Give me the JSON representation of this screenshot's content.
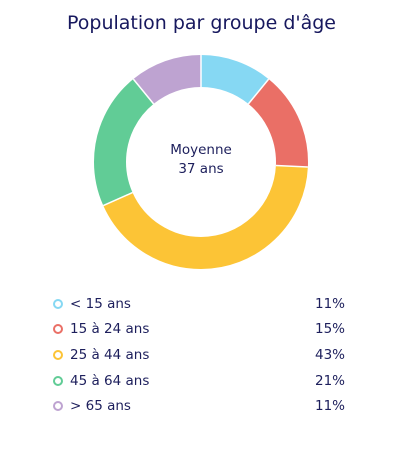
{
  "chart_data": {
    "type": "pie",
    "title": "Population par groupe d'âge",
    "center_label": {
      "line1": "Moyenne",
      "line2": "37 ans"
    },
    "categories": [
      "< 15 ans",
      "15 à 24 ans",
      "25 à 44 ans",
      "45 à 64 ans",
      "> 65 ans"
    ],
    "values": [
      11,
      15,
      43,
      21,
      11
    ],
    "value_labels": [
      "11%",
      "15%",
      "43%",
      "21%",
      "11%"
    ],
    "colors": [
      "#86d8f3",
      "#ea6f66",
      "#fcc436",
      "#61cc96",
      "#bea3d1"
    ],
    "legend_position": "bottom"
  }
}
